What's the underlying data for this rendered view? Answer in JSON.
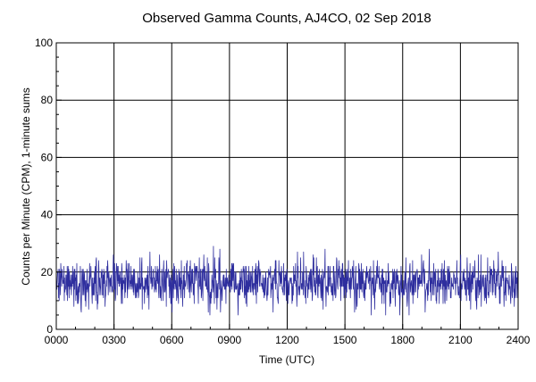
{
  "chart_data": {
    "type": "line",
    "title": "Observed Gamma Counts, AJ4CO, 02 Sep 2018",
    "xlabel": "Time (UTC)",
    "ylabel": "Counts per Minute (CPM), 1-minute sums",
    "x_unit": "minutes of day (UTC)",
    "xlim": [
      0,
      1440
    ],
    "ylim": [
      0,
      100
    ],
    "x_ticks": [
      0,
      180,
      360,
      540,
      720,
      900,
      1080,
      1260,
      1440
    ],
    "x_tick_labels": [
      "0000",
      "0300",
      "0600",
      "0900",
      "1200",
      "1500",
      "1800",
      "2100",
      "2400"
    ],
    "y_ticks": [
      0,
      20,
      40,
      60,
      80,
      100
    ],
    "y_tick_labels": [
      "0",
      "20",
      "40",
      "60",
      "80",
      "100"
    ],
    "grid": true,
    "series": [
      {
        "color": "#2e2e9e",
        "sampling": "1 point per minute, 0000-2400 UTC",
        "mean": 16.5,
        "range": [
          5,
          30
        ],
        "values": []
      }
    ]
  }
}
